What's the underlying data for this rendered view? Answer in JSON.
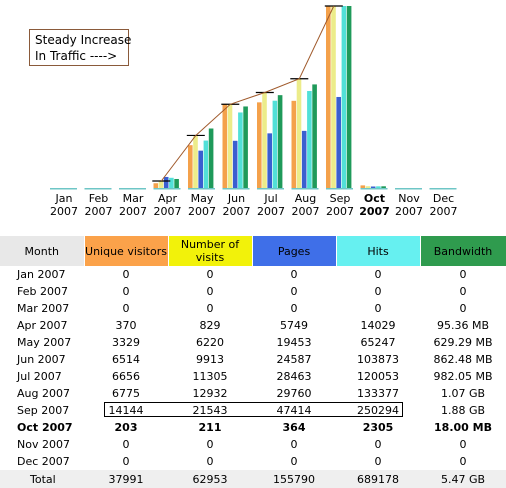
{
  "annotation": {
    "line1": "Steady Increase",
    "line2": "In Traffic ---->"
  },
  "colors": {
    "unique": "#f4a14b",
    "visits": "#ecec8a",
    "pages": "#3a5fd0",
    "hits": "#52e0d8",
    "bandwidth": "#1f9a5a",
    "trend": "#a05a2c"
  },
  "table": {
    "headers": {
      "month": "Month",
      "unique": "Unique visitors",
      "visits": "Number of visits",
      "pages": "Pages",
      "hits": "Hits",
      "bandwidth": "Bandwidth"
    },
    "header_colors": {
      "month": "#e8e8e8",
      "unique": "#fba24a",
      "visits": "#f2f20a",
      "pages": "#3f6fe8",
      "hits": "#66f0f0",
      "bandwidth": "#2f9b4e"
    },
    "rows": [
      {
        "month": "Jan 2007",
        "unique": "0",
        "visits": "0",
        "pages": "0",
        "hits": "0",
        "bandwidth": "0",
        "bold": false
      },
      {
        "month": "Feb 2007",
        "unique": "0",
        "visits": "0",
        "pages": "0",
        "hits": "0",
        "bandwidth": "0",
        "bold": false
      },
      {
        "month": "Mar 2007",
        "unique": "0",
        "visits": "0",
        "pages": "0",
        "hits": "0",
        "bandwidth": "0",
        "bold": false
      },
      {
        "month": "Apr 2007",
        "unique": "370",
        "visits": "829",
        "pages": "5749",
        "hits": "14029",
        "bandwidth": "95.36 MB",
        "bold": false
      },
      {
        "month": "May 2007",
        "unique": "3329",
        "visits": "6220",
        "pages": "19453",
        "hits": "65247",
        "bandwidth": "629.29 MB",
        "bold": false
      },
      {
        "month": "Jun 2007",
        "unique": "6514",
        "visits": "9913",
        "pages": "24587",
        "hits": "103873",
        "bandwidth": "862.48 MB",
        "bold": false
      },
      {
        "month": "Jul 2007",
        "unique": "6656",
        "visits": "11305",
        "pages": "28463",
        "hits": "120053",
        "bandwidth": "982.05 MB",
        "bold": false
      },
      {
        "month": "Aug 2007",
        "unique": "6775",
        "visits": "12932",
        "pages": "29760",
        "hits": "133377",
        "bandwidth": "1.07 GB",
        "bold": false
      },
      {
        "month": "Sep 2007",
        "unique": "14144",
        "visits": "21543",
        "pages": "47414",
        "hits": "250294",
        "bandwidth": "1.88 GB",
        "bold": false
      },
      {
        "month": "Oct 2007",
        "unique": "203",
        "visits": "211",
        "pages": "364",
        "hits": "2305",
        "bandwidth": "18.00 MB",
        "bold": true
      },
      {
        "month": "Nov 2007",
        "unique": "0",
        "visits": "0",
        "pages": "0",
        "hits": "0",
        "bandwidth": "0",
        "bold": false
      },
      {
        "month": "Dec 2007",
        "unique": "0",
        "visits": "0",
        "pages": "0",
        "hits": "0",
        "bandwidth": "0",
        "bold": false
      }
    ],
    "total": {
      "month": "Total",
      "unique": "37991",
      "visits": "62953",
      "pages": "155790",
      "hits": "689178",
      "bandwidth": "5.47 GB"
    }
  },
  "chart_data": {
    "type": "bar",
    "categories": [
      "Jan 2007",
      "Feb 2007",
      "Mar 2007",
      "Apr 2007",
      "May 2007",
      "Jun 2007",
      "Jul 2007",
      "Aug 2007",
      "Sep 2007",
      "Oct 2007",
      "Nov 2007",
      "Dec 2007"
    ],
    "tick_labels": [
      [
        "Jan",
        "2007"
      ],
      [
        "Feb",
        "2007"
      ],
      [
        "Mar",
        "2007"
      ],
      [
        "Apr",
        "2007"
      ],
      [
        "May",
        "2007"
      ],
      [
        "Jun",
        "2007"
      ],
      [
        "Jul",
        "2007"
      ],
      [
        "Aug",
        "2007"
      ],
      [
        "Sep",
        "2007"
      ],
      [
        "Oct",
        "2007"
      ],
      [
        "Nov",
        "2007"
      ],
      [
        "Dec",
        "2007"
      ]
    ],
    "bold_category": "Oct 2007",
    "series": [
      {
        "name": "Unique visitors",
        "values": [
          0,
          0,
          0,
          370,
          3329,
          6514,
          6656,
          6775,
          14144,
          203,
          0,
          0
        ]
      },
      {
        "name": "Number of visits",
        "values": [
          0,
          0,
          0,
          829,
          6220,
          9913,
          11305,
          12932,
          21543,
          211,
          0,
          0
        ]
      },
      {
        "name": "Pages",
        "values": [
          0,
          0,
          0,
          5749,
          19453,
          24587,
          28463,
          29760,
          47414,
          364,
          0,
          0
        ]
      },
      {
        "name": "Hits",
        "values": [
          0,
          0,
          0,
          14029,
          65247,
          103873,
          120053,
          133377,
          250294,
          2305,
          0,
          0
        ]
      },
      {
        "name": "Bandwidth",
        "values": [
          0,
          0,
          0,
          95.36,
          629.29,
          862.48,
          982.05,
          1095.68,
          1925.12,
          18.0,
          0,
          0
        ]
      }
    ],
    "trend_categories": [
      "Apr 2007",
      "May 2007",
      "Jun 2007",
      "Jul 2007",
      "Aug 2007",
      "Sep 2007"
    ]
  }
}
